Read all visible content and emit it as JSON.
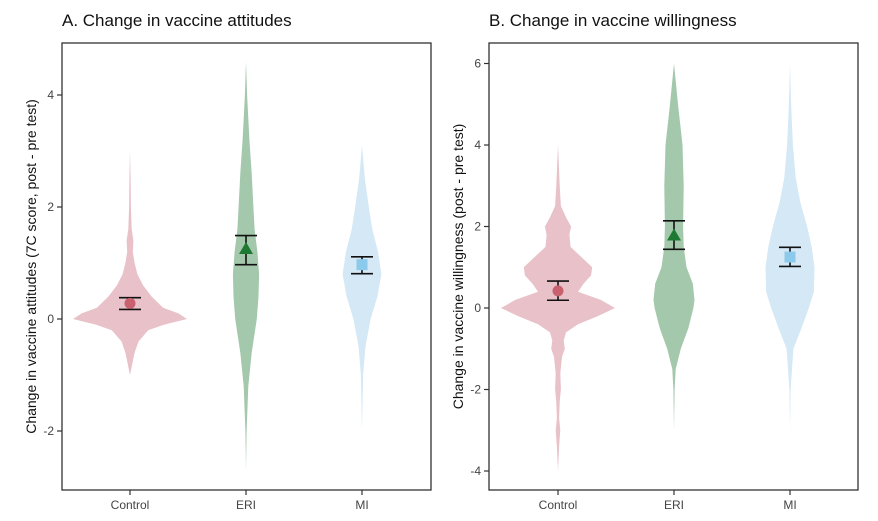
{
  "chart_data": [
    {
      "type": "violin",
      "title": "A. Change in vaccine attitudes",
      "xlabel": "",
      "ylabel": "Change in vaccine attitudes (7C score, post - pre test)",
      "ylim": [
        -3.1,
        4.9
      ],
      "yticks": [
        -2,
        0,
        2,
        4
      ],
      "categories": [
        "Control",
        "ERI",
        "MI"
      ],
      "series": [
        {
          "name": "Control",
          "color": "#e8c1c9",
          "marker_color": "#c9616f",
          "marker": "circle",
          "mean": 0.28,
          "ci": [
            0.17,
            0.38
          ],
          "density": [
            [
              -1,
              0
            ],
            [
              -0.8,
              0.04
            ],
            [
              -0.6,
              0.08
            ],
            [
              -0.4,
              0.15
            ],
            [
              -0.2,
              0.32
            ],
            [
              -0.1,
              0.6
            ],
            [
              0,
              1.0
            ],
            [
              0.1,
              0.85
            ],
            [
              0.2,
              0.58
            ],
            [
              0.4,
              0.38
            ],
            [
              0.6,
              0.23
            ],
            [
              0.8,
              0.13
            ],
            [
              1.0,
              0.08
            ],
            [
              1.2,
              0.05
            ],
            [
              1.4,
              0.06
            ],
            [
              1.6,
              0.03
            ],
            [
              2,
              0.015
            ],
            [
              2.5,
              0.01
            ],
            [
              3,
              0
            ]
          ]
        },
        {
          "name": "ERI",
          "color": "#a3c8ac",
          "marker_color": "#1e7a33",
          "marker": "triangle",
          "mean": 1.25,
          "ci": [
            0.97,
            1.49
          ],
          "density": [
            [
              -2.7,
              0
            ],
            [
              -2,
              0.01
            ],
            [
              -1.2,
              0.04
            ],
            [
              -0.6,
              0.1
            ],
            [
              0,
              0.19
            ],
            [
              0.4,
              0.22
            ],
            [
              0.8,
              0.23
            ],
            [
              1.2,
              0.2
            ],
            [
              1.6,
              0.15
            ],
            [
              2,
              0.13
            ],
            [
              2.6,
              0.1
            ],
            [
              3.2,
              0.06
            ],
            [
              4,
              0.02
            ],
            [
              4.6,
              0
            ]
          ]
        },
        {
          "name": "MI",
          "color": "#d4e8f6",
          "marker_color": "#8ccaeb",
          "marker": "square",
          "mean": 0.97,
          "ci": [
            0.81,
            1.11
          ],
          "density": [
            [
              -2,
              0
            ],
            [
              -1,
              0.02
            ],
            [
              -0.5,
              0.06
            ],
            [
              0,
              0.15
            ],
            [
              0.4,
              0.27
            ],
            [
              0.8,
              0.34
            ],
            [
              1.2,
              0.28
            ],
            [
              1.6,
              0.18
            ],
            [
              2,
              0.12
            ],
            [
              2.5,
              0.05
            ],
            [
              3.1,
              0
            ]
          ]
        }
      ]
    },
    {
      "type": "violin",
      "title": "B. Change in vaccine willingness",
      "xlabel": "",
      "ylabel": "Change in vaccine willingness (post - pre test)",
      "ylim": [
        -4.45,
        6.5
      ],
      "yticks": [
        -4,
        -2,
        0,
        2,
        4,
        6
      ],
      "categories": [
        "Control",
        "ERI",
        "MI"
      ],
      "series": [
        {
          "name": "Control",
          "color": "#e8c1c9",
          "marker_color": "#c9616f",
          "marker": "circle",
          "mean": 0.42,
          "ci": [
            0.19,
            0.66
          ],
          "density": [
            [
              -4,
              0
            ],
            [
              -3.4,
              0.02
            ],
            [
              -3,
              0.04
            ],
            [
              -2.7,
              0.02
            ],
            [
              -2.3,
              0.03
            ],
            [
              -2,
              0.05
            ],
            [
              -1.6,
              0.04
            ],
            [
              -1.2,
              0.07
            ],
            [
              -1,
              0.12
            ],
            [
              -0.8,
              0.1
            ],
            [
              -0.6,
              0.14
            ],
            [
              -0.4,
              0.35
            ],
            [
              -0.2,
              0.7
            ],
            [
              0,
              1.0
            ],
            [
              0.2,
              0.75
            ],
            [
              0.4,
              0.35
            ],
            [
              0.6,
              0.45
            ],
            [
              0.8,
              0.58
            ],
            [
              1.0,
              0.6
            ],
            [
              1.2,
              0.45
            ],
            [
              1.5,
              0.22
            ],
            [
              1.8,
              0.2
            ],
            [
              2,
              0.23
            ],
            [
              2.2,
              0.15
            ],
            [
              2.5,
              0.05
            ],
            [
              3,
              0.03
            ],
            [
              4,
              0
            ]
          ]
        },
        {
          "name": "ERI",
          "color": "#a3c8ac",
          "marker_color": "#1e7a33",
          "marker": "triangle",
          "mean": 1.78,
          "ci": [
            1.44,
            2.14
          ],
          "density": [
            [
              -3,
              0
            ],
            [
              -2,
              0.01
            ],
            [
              -1.5,
              0.03
            ],
            [
              -1,
              0.12
            ],
            [
              -0.5,
              0.25
            ],
            [
              0,
              0.34
            ],
            [
              0.2,
              0.36
            ],
            [
              0.6,
              0.33
            ],
            [
              1,
              0.22
            ],
            [
              1.5,
              0.17
            ],
            [
              2,
              0.16
            ],
            [
              3,
              0.17
            ],
            [
              4,
              0.15
            ],
            [
              5,
              0.07
            ],
            [
              6,
              0
            ]
          ]
        },
        {
          "name": "MI",
          "color": "#d4e8f6",
          "marker_color": "#8ccaeb",
          "marker": "square",
          "mean": 1.25,
          "ci": [
            1.02,
            1.49
          ],
          "density": [
            [
              -3,
              0
            ],
            [
              -2,
              0.01
            ],
            [
              -1,
              0.06
            ],
            [
              -0.5,
              0.2
            ],
            [
              0,
              0.33
            ],
            [
              0.4,
              0.42
            ],
            [
              1,
              0.43
            ],
            [
              1.5,
              0.38
            ],
            [
              2,
              0.3
            ],
            [
              2.6,
              0.18
            ],
            [
              3.2,
              0.1
            ],
            [
              4,
              0.05
            ],
            [
              5,
              0.02
            ],
            [
              6,
              0
            ]
          ]
        }
      ]
    }
  ]
}
